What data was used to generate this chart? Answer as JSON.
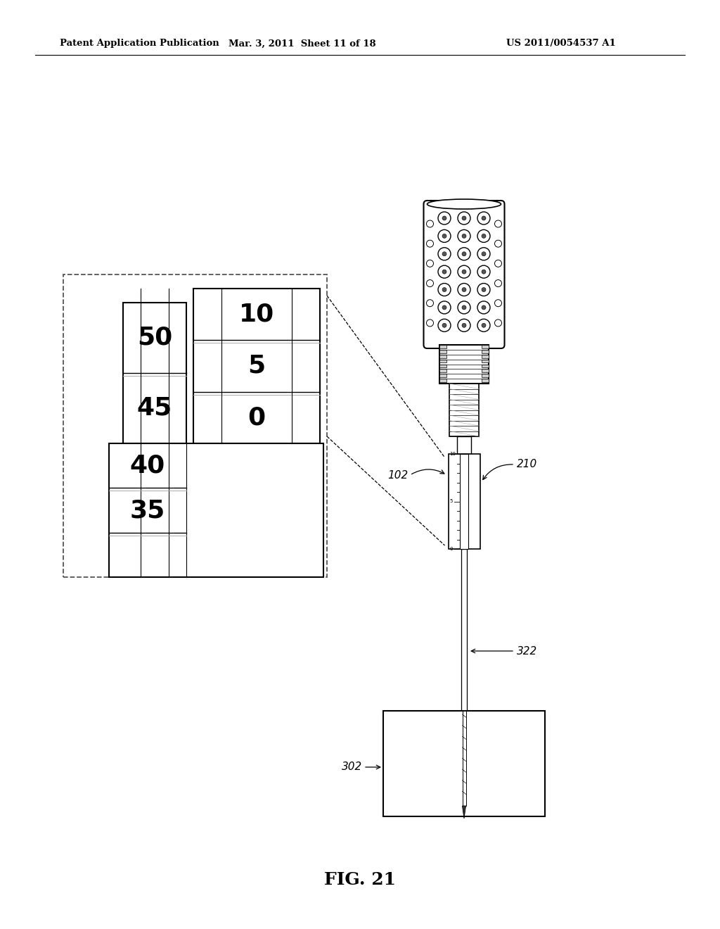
{
  "bg_color": "#ffffff",
  "header_left": "Patent Application Publication",
  "header_mid": "Mar. 3, 2011  Sheet 11 of 18",
  "header_right": "US 2011/0054537 A1",
  "figure_label": "FIG. 21",
  "label_102": "102",
  "label_210": "210",
  "label_322": "322",
  "label_302": "302",
  "table_numbers_right": [
    "10",
    "5",
    "0"
  ],
  "table_numbers_left": [
    "50",
    "45"
  ],
  "table_numbers_bottom": [
    "40",
    "35"
  ]
}
